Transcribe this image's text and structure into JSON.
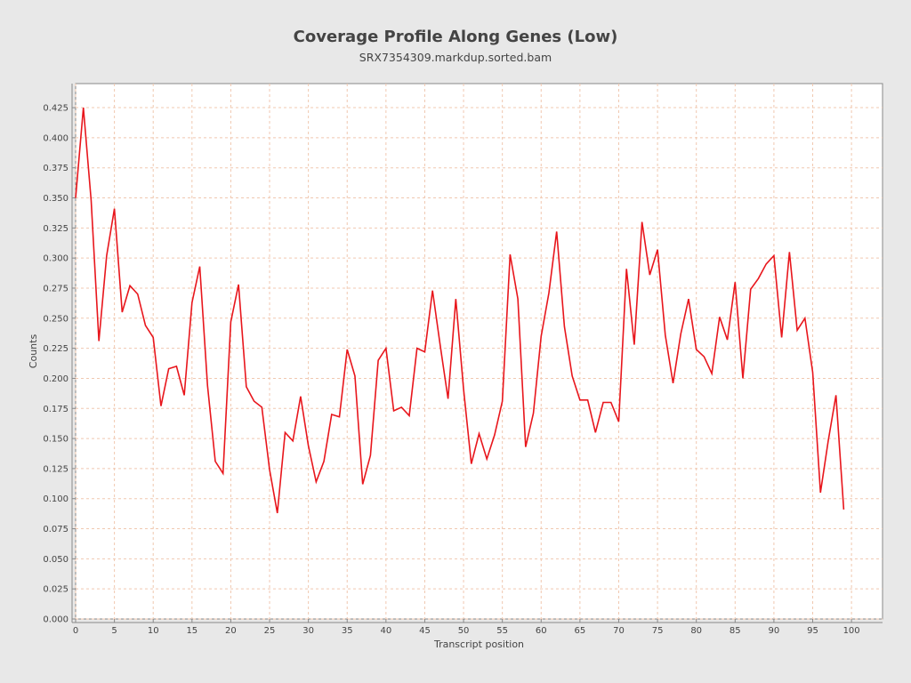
{
  "chart_data": {
    "type": "line",
    "title": "Coverage Profile Along Genes (Low)",
    "subtitle": "SRX7354309.markdup.sorted.bam",
    "xlabel": "Transcript position",
    "ylabel": "Counts",
    "xlim": [
      0,
      104
    ],
    "ylim": [
      0,
      0.445
    ],
    "xticks": [
      0,
      5,
      10,
      15,
      20,
      25,
      30,
      35,
      40,
      45,
      50,
      55,
      60,
      65,
      70,
      75,
      80,
      85,
      90,
      95,
      100
    ],
    "yticks": [
      0.0,
      0.025,
      0.05,
      0.075,
      0.1,
      0.125,
      0.15,
      0.175,
      0.2,
      0.225,
      0.25,
      0.275,
      0.3,
      0.325,
      0.35,
      0.375,
      0.4,
      0.425
    ],
    "ytick_labels": [
      "0.000",
      "0.025",
      "0.050",
      "0.075",
      "0.100",
      "0.125",
      "0.150",
      "0.175",
      "0.200",
      "0.225",
      "0.250",
      "0.275",
      "0.300",
      "0.325",
      "0.350",
      "0.375",
      "0.400",
      "0.425"
    ],
    "grid": true,
    "grid_color": "#f0c8b0",
    "line_color": "#e8161c",
    "plot_background": "#ffffff",
    "page_background": "#e8e8e8",
    "series": [
      {
        "x": [
          0,
          1,
          2,
          3,
          4,
          5,
          6,
          7,
          8,
          9,
          10,
          11,
          12,
          13,
          14,
          15,
          16,
          17,
          18,
          19,
          20,
          21,
          22,
          23,
          24,
          25,
          26,
          27,
          28,
          29,
          30,
          31,
          32,
          33,
          34,
          35,
          36,
          37,
          38,
          39,
          40,
          41,
          42,
          43,
          44,
          45,
          46,
          47,
          48,
          49,
          50,
          51,
          52,
          53,
          54,
          55,
          56,
          57,
          58,
          59,
          60,
          61,
          62,
          63,
          64,
          65,
          66,
          67,
          68,
          69,
          70,
          71,
          72,
          73,
          74,
          75,
          76,
          77,
          78,
          79,
          80,
          81,
          82,
          83,
          84,
          85,
          86,
          87,
          88,
          89,
          90,
          91,
          92,
          93,
          94,
          95,
          96,
          97,
          98,
          99
        ],
        "values": [
          0.35,
          0.425,
          0.348,
          0.231,
          0.302,
          0.341,
          0.255,
          0.277,
          0.27,
          0.244,
          0.234,
          0.177,
          0.208,
          0.21,
          0.186,
          0.263,
          0.293,
          0.194,
          0.131,
          0.121,
          0.247,
          0.278,
          0.193,
          0.181,
          0.176,
          0.124,
          0.088,
          0.155,
          0.148,
          0.185,
          0.144,
          0.114,
          0.131,
          0.17,
          0.168,
          0.224,
          0.202,
          0.112,
          0.136,
          0.215,
          0.225,
          0.173,
          0.176,
          0.169,
          0.225,
          0.222,
          0.273,
          0.227,
          0.183,
          0.266,
          0.191,
          0.129,
          0.154,
          0.133,
          0.153,
          0.181,
          0.303,
          0.266,
          0.143,
          0.171,
          0.235,
          0.271,
          0.322,
          0.243,
          0.202,
          0.182,
          0.182,
          0.155,
          0.18,
          0.18,
          0.164,
          0.291,
          0.228,
          0.33,
          0.286,
          0.307,
          0.236,
          0.196,
          0.237,
          0.266,
          0.224,
          0.218,
          0.204,
          0.251,
          0.232,
          0.28,
          0.2,
          0.274,
          0.283,
          0.295,
          0.302,
          0.234,
          0.305,
          0.24,
          0.25,
          0.205,
          0.105,
          0.148,
          0.186,
          0.091
        ]
      }
    ]
  }
}
